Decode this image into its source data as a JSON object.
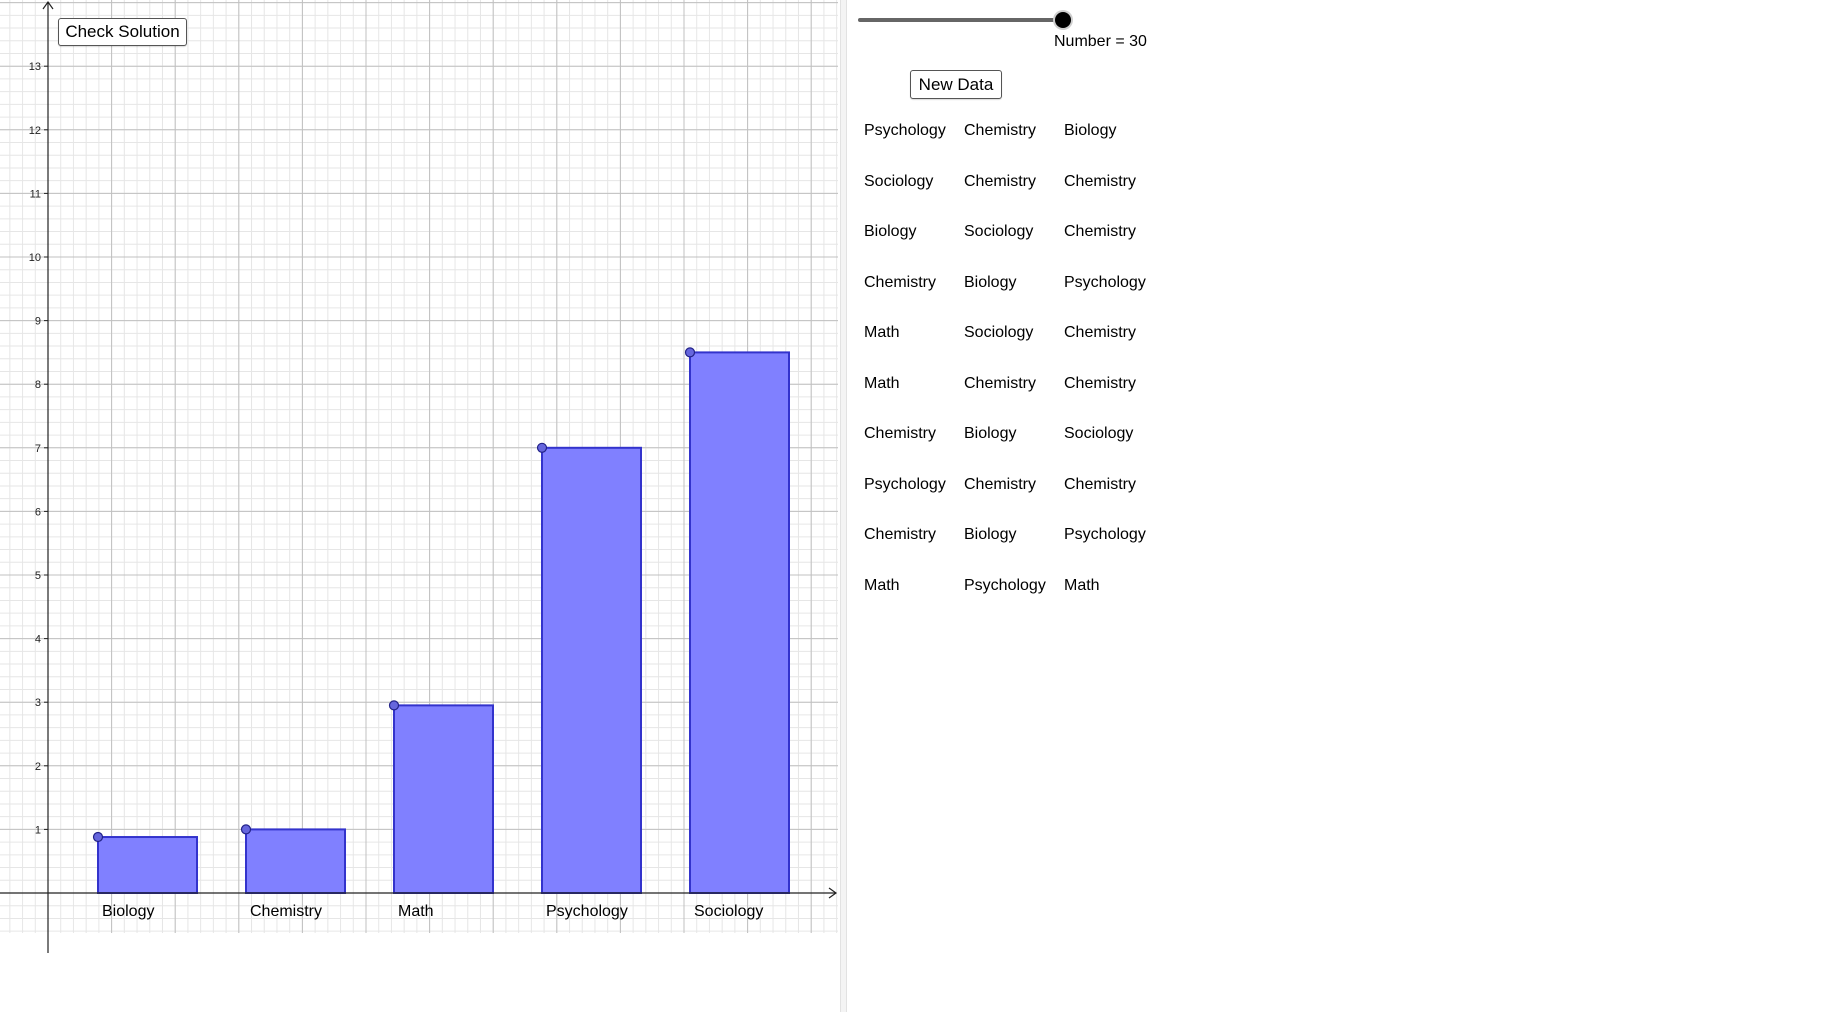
{
  "buttons": {
    "check_solution": "Check Solution",
    "new_data": "New Data"
  },
  "slider": {
    "label": "Number = 30",
    "value": 30
  },
  "colors": {
    "bar_fill": "#8080ff",
    "bar_stroke": "#3333cc",
    "grid_major": "#c0c0c0",
    "grid_minor": "#e6e6e6"
  },
  "data_table": [
    [
      "Psychology",
      "Chemistry",
      "Biology"
    ],
    [
      "Sociology",
      "Chemistry",
      "Chemistry"
    ],
    [
      "Biology",
      "Sociology",
      "Chemistry"
    ],
    [
      "Chemistry",
      "Biology",
      "Psychology"
    ],
    [
      "Math",
      "Sociology",
      "Chemistry"
    ],
    [
      "Math",
      "Chemistry",
      "Chemistry"
    ],
    [
      "Chemistry",
      "Biology",
      "Sociology"
    ],
    [
      "Psychology",
      "Chemistry",
      "Chemistry"
    ],
    [
      "Chemistry",
      "Biology",
      "Psychology"
    ],
    [
      "Math",
      "Psychology",
      "Math"
    ]
  ],
  "chart_data": {
    "type": "bar",
    "categories": [
      "Biology",
      "Chemistry",
      "Math",
      "Psychology",
      "Sociology"
    ],
    "values": [
      0.88,
      1.0,
      2.95,
      7.0,
      8.5
    ],
    "ylim": [
      0,
      13
    ],
    "yticks": [
      1,
      2,
      3,
      4,
      5,
      6,
      7,
      8,
      9,
      10,
      11,
      12,
      13
    ],
    "grid": true
  }
}
